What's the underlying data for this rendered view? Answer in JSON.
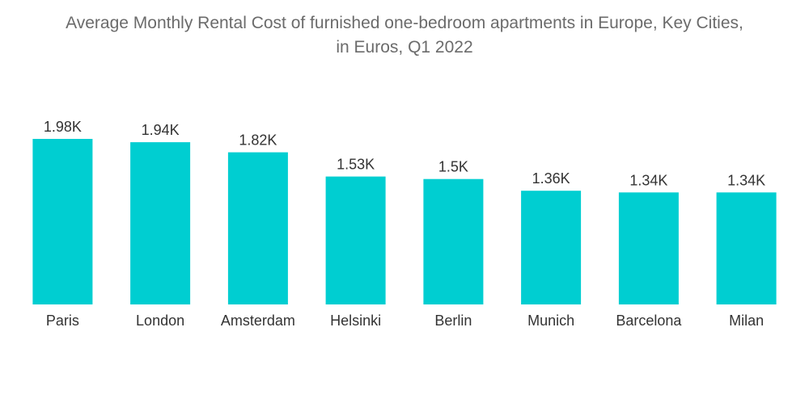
{
  "chart_data": {
    "type": "bar",
    "title_line1": "Average Monthly Rental Cost of furnished one-bedroom apartments in Europe, Key Cities,",
    "title_line2": "in Euros, Q1 2022",
    "categories": [
      "Paris",
      "London",
      "Amsterdam",
      "Helsinki",
      "Berlin",
      "Munich",
      "Barcelona",
      "Milan"
    ],
    "values": [
      1980,
      1940,
      1820,
      1530,
      1500,
      1360,
      1340,
      1340
    ],
    "data_labels": [
      "1.98K",
      "1.94K",
      "1.82K",
      "1.53K",
      "1.5K",
      "1.36K",
      "1.34K",
      "1.34K"
    ],
    "xlabel": "",
    "ylabel": "",
    "ylim": [
      0,
      1980
    ],
    "grid": false,
    "bar_color": "#00CED1"
  }
}
